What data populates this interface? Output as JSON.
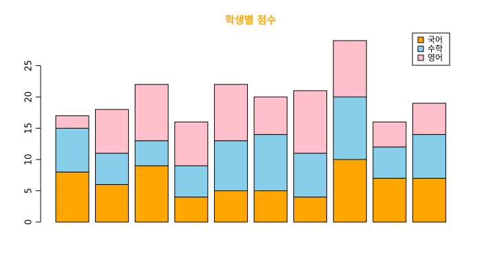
{
  "chart_data": {
    "type": "bar",
    "stacked": true,
    "title": "학생별 점수",
    "title_color": "#FFA500",
    "xlabel": "",
    "ylabel": "",
    "ylim": [
      0,
      29
    ],
    "yticks": [
      0,
      5,
      10,
      15,
      20,
      25
    ],
    "ytick_labels": [
      "0",
      "5",
      "10",
      "15",
      "20",
      "25"
    ],
    "grid": false,
    "legend_position": "top-right",
    "categories": [
      "",
      "",
      "",
      "",
      "",
      "",
      "",
      "",
      "",
      ""
    ],
    "series": [
      {
        "name": "국어",
        "color": "#FFA500",
        "values": [
          8,
          6,
          9,
          4,
          5,
          5,
          4,
          10,
          7,
          7
        ]
      },
      {
        "name": "수학",
        "color": "#87CEEB",
        "values": [
          7,
          5,
          4,
          5,
          8,
          9,
          7,
          10,
          5,
          7
        ]
      },
      {
        "name": "영어",
        "color": "#FFC0CB",
        "values": [
          2,
          7,
          9,
          7,
          9,
          6,
          10,
          9,
          4,
          5
        ]
      }
    ]
  }
}
